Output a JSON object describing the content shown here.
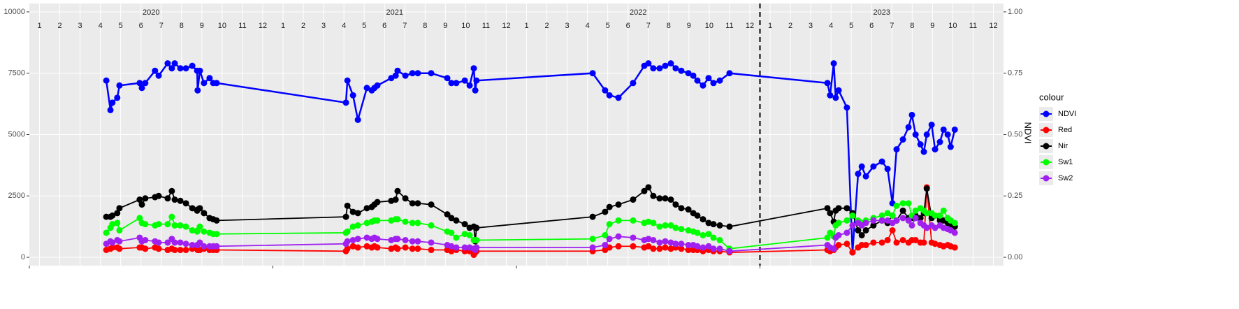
{
  "chart_data": {
    "type": "line",
    "x": [
      2020.316,
      2020.333,
      2020.341,
      2020.361,
      2020.37,
      2020.453,
      2020.462,
      2020.476,
      2020.516,
      2020.531,
      2020.568,
      2020.585,
      2020.597,
      2020.62,
      2020.643,
      2020.669,
      2020.689,
      2020.691,
      2020.7,
      2020.717,
      2020.74,
      2020.755,
      2020.769,
      2021.3,
      2021.306,
      2021.329,
      2021.349,
      2021.386,
      2021.406,
      2021.417,
      2021.429,
      2021.486,
      2021.504,
      2021.512,
      2021.544,
      2021.573,
      2021.595,
      2021.65,
      2021.716,
      2021.733,
      2021.753,
      2021.788,
      2021.808,
      2021.825,
      2021.831,
      2021.836,
      2022.313,
      2022.364,
      2022.382,
      2022.419,
      2022.479,
      2022.525,
      2022.542,
      2022.562,
      2022.588,
      2022.611,
      2022.634,
      2022.654,
      2022.677,
      2022.706,
      2022.726,
      2022.743,
      2022.766,
      2022.789,
      2022.809,
      2022.835,
      2022.875,
      2023.277,
      2023.288,
      2023.303,
      2023.311,
      2023.323,
      2023.357,
      2023.38,
      2023.403,
      2023.418,
      2023.435,
      2023.466,
      2023.501,
      2023.524,
      2023.544,
      2023.561,
      2023.587,
      2023.61,
      2023.624,
      2023.639,
      2023.659,
      2023.673,
      2023.685,
      2023.705,
      2023.719,
      2023.739,
      2023.754,
      2023.771,
      2023.783,
      2023.8
    ],
    "series": [
      {
        "name": "NDVI",
        "color": "#0000ff",
        "axis": "y2",
        "values": [
          0.72,
          0.6,
          0.63,
          0.65,
          0.7,
          0.71,
          0.69,
          0.71,
          0.76,
          0.74,
          0.79,
          0.77,
          0.79,
          0.77,
          0.77,
          0.78,
          0.76,
          0.68,
          0.76,
          0.71,
          0.73,
          0.71,
          0.71,
          0.63,
          0.72,
          0.66,
          0.56,
          0.69,
          0.68,
          0.69,
          0.7,
          0.73,
          0.74,
          0.76,
          0.74,
          0.75,
          0.75,
          0.75,
          0.73,
          0.71,
          0.71,
          0.72,
          0.7,
          0.77,
          0.68,
          0.72,
          0.75,
          0.68,
          0.66,
          0.65,
          0.71,
          0.78,
          0.79,
          0.77,
          0.77,
          0.78,
          0.79,
          0.77,
          0.76,
          0.75,
          0.74,
          0.72,
          0.7,
          0.73,
          0.71,
          0.72,
          0.75,
          0.71,
          0.66,
          0.79,
          0.65,
          0.68,
          0.61,
          0.02,
          0.34,
          0.37,
          0.33,
          0.37,
          0.39,
          0.36,
          0.22,
          0.44,
          0.48,
          0.53,
          0.58,
          0.5,
          0.46,
          0.43,
          0.5,
          0.54,
          0.44,
          0.47,
          0.52,
          0.5,
          0.45,
          0.52
        ]
      },
      {
        "name": "Red",
        "color": "#ff0000",
        "values": [
          300,
          350,
          400,
          400,
          350,
          400,
          400,
          350,
          400,
          350,
          300,
          350,
          300,
          300,
          300,
          350,
          350,
          300,
          300,
          350,
          300,
          300,
          300,
          250,
          350,
          450,
          400,
          450,
          400,
          450,
          400,
          350,
          400,
          350,
          400,
          350,
          350,
          300,
          300,
          250,
          300,
          250,
          250,
          100,
          200,
          250,
          250,
          300,
          400,
          450,
          450,
          400,
          450,
          350,
          350,
          400,
          350,
          400,
          350,
          300,
          300,
          300,
          250,
          300,
          250,
          250,
          200,
          300,
          250,
          300,
          400,
          500,
          550,
          200,
          400,
          500,
          500,
          600,
          600,
          700,
          1100,
          600,
          700,
          600,
          700,
          700,
          600,
          600,
          2850,
          600,
          550,
          500,
          450,
          500,
          450,
          400
        ]
      },
      {
        "name": "Nir",
        "color": "#000000",
        "values": [
          1650,
          1650,
          1700,
          1800,
          2000,
          2350,
          2150,
          2400,
          2450,
          2500,
          2400,
          2700,
          2350,
          2300,
          2200,
          2000,
          1900,
          1950,
          2000,
          1800,
          1600,
          1550,
          1500,
          1650,
          2100,
          1850,
          1800,
          2000,
          2050,
          2150,
          2250,
          2300,
          2350,
          2700,
          2400,
          2200,
          2200,
          2150,
          1750,
          1600,
          1500,
          1350,
          1200,
          1250,
          650,
          1200,
          1650,
          1850,
          2050,
          2150,
          2350,
          2700,
          2850,
          2500,
          2400,
          2400,
          2350,
          2150,
          2000,
          1950,
          1800,
          1700,
          1550,
          1400,
          1350,
          1300,
          1250,
          2000,
          1800,
          1450,
          1900,
          2000,
          2000,
          1800,
          1100,
          900,
          1100,
          1300,
          1500,
          1400,
          1700,
          1500,
          1900,
          1600,
          1600,
          1700,
          1600,
          1800,
          2800,
          1600,
          1700,
          1500,
          1500,
          1400,
          1300,
          1250
        ]
      },
      {
        "name": "Sw1",
        "color": "#00ff00",
        "values": [
          1000,
          1200,
          1350,
          1400,
          1100,
          1600,
          1400,
          1350,
          1300,
          1350,
          1350,
          1650,
          1300,
          1300,
          1250,
          1100,
          1050,
          1100,
          1250,
          1050,
          1000,
          950,
          950,
          1000,
          1050,
          1250,
          1300,
          1400,
          1450,
          1500,
          1500,
          1500,
          1550,
          1550,
          1450,
          1400,
          1400,
          1300,
          1050,
          1000,
          800,
          950,
          900,
          700,
          700,
          700,
          750,
          900,
          1350,
          1500,
          1500,
          1400,
          1450,
          1400,
          1250,
          1300,
          1300,
          1200,
          1150,
          1100,
          1050,
          1000,
          900,
          950,
          800,
          700,
          350,
          800,
          1000,
          850,
          1300,
          1400,
          1500,
          1700,
          1500,
          1400,
          1500,
          1600,
          1700,
          1800,
          1700,
          2100,
          2200,
          2200,
          1700,
          1900,
          2000,
          1900,
          1800,
          1800,
          1700,
          1700,
          1900,
          1600,
          1500,
          1400
        ]
      },
      {
        "name": "Sw2",
        "color": "#a020f0",
        "values": [
          550,
          650,
          600,
          700,
          650,
          800,
          650,
          700,
          650,
          600,
          600,
          750,
          600,
          600,
          550,
          500,
          500,
          500,
          600,
          450,
          450,
          450,
          450,
          550,
          650,
          700,
          750,
          800,
          750,
          800,
          750,
          700,
          750,
          750,
          700,
          650,
          650,
          600,
          500,
          450,
          400,
          400,
          400,
          350,
          300,
          400,
          400,
          500,
          750,
          850,
          800,
          700,
          750,
          700,
          600,
          650,
          600,
          550,
          550,
          500,
          500,
          450,
          400,
          450,
          350,
          350,
          250,
          500,
          400,
          350,
          800,
          900,
          1000,
          1300,
          1400,
          1300,
          1400,
          1500,
          1500,
          1500,
          1400,
          1500,
          1600,
          1500,
          1300,
          1600,
          1400,
          1300,
          1200,
          1300,
          1200,
          1300,
          1200,
          1150,
          1100,
          1000
        ]
      }
    ],
    "xlim": [
      2020,
      2024
    ],
    "years": [
      2020,
      2021,
      2022,
      2023
    ],
    "months": [
      "1",
      "2",
      "3",
      "4",
      "5",
      "6",
      "7",
      "8",
      "9",
      "10",
      "11",
      "12"
    ],
    "vline": 2023,
    "ylim": [
      -340,
      10340
    ],
    "yticks": [
      0,
      2500,
      5000,
      7500,
      10000
    ],
    "y2lim": [
      -0.034,
      1.034
    ],
    "y2ticks": [
      {
        "value": 0,
        "label": "0.00"
      },
      {
        "value": 0.25,
        "label": "0.25"
      },
      {
        "value": 0.5,
        "label": "0.50"
      },
      {
        "value": 0.75,
        "label": "0.75"
      },
      {
        "value": 1,
        "label": "1.00"
      }
    ],
    "y2label": "NDVI",
    "legend_title": "colour",
    "legend": "right",
    "grid": true
  }
}
